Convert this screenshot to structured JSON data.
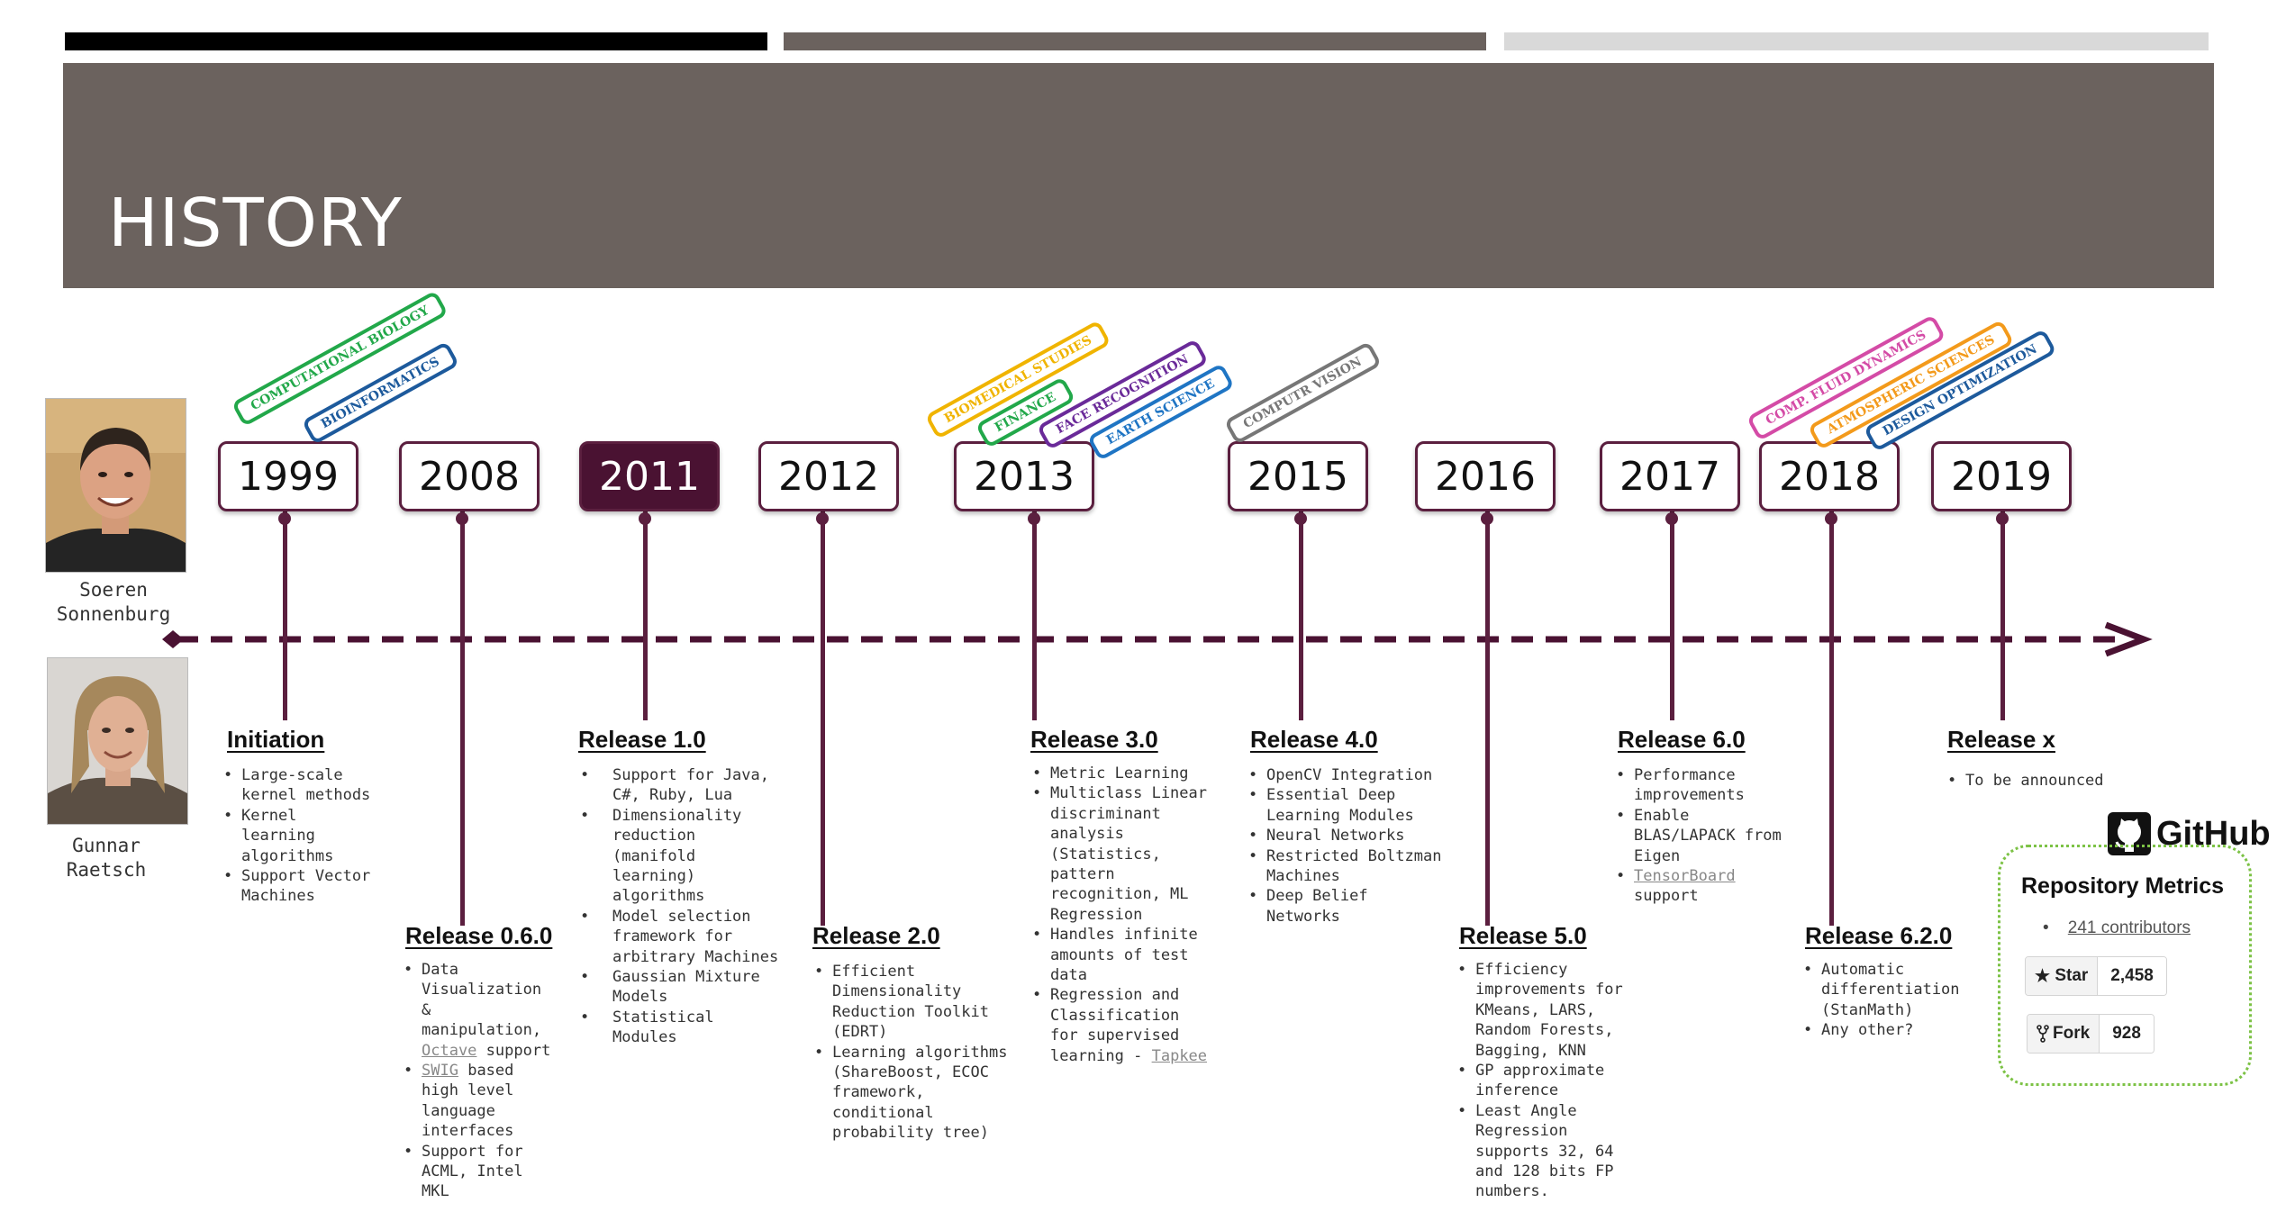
{
  "title": "HISTORY",
  "colors": {
    "accent": "#5b1f3f",
    "header": "#6b625e",
    "card_border": "#7cc245"
  },
  "people": [
    {
      "name_line1": "Soeren",
      "name_line2": "Sonnenburg",
      "icon": "person-photo"
    },
    {
      "name_line1": "Gunnar",
      "name_line2": "Raetsch",
      "icon": "person-photo"
    }
  ],
  "years": [
    "1999",
    "2008",
    "2011",
    "2012",
    "2013",
    "2015",
    "2016",
    "2017",
    "2018",
    "2019"
  ],
  "active_year": "2011",
  "tags": {
    "computational_biology": "COMPUTATIONAL BIOLOGY",
    "bioinformatics": "BIOINFORMATICS",
    "biomedical_studies": "BIOMEDICAL STUDIES",
    "finance": "FINANCE",
    "face_recognition": "FACE RECOGNITION",
    "earth_science": "EARTH SCIENCE",
    "computr_vision": "COMPUTR VISION",
    "comp_fluid_dynamics": "COMP. FLUID DYNAMICS",
    "atmospheric_sciences": "ATMOSPHERIC SCIENCES",
    "design_optimization": "DESIGN OPTIMIZATION"
  },
  "releases": {
    "initiation": {
      "title": "Initiation",
      "items": [
        "Large-scale kernel methods",
        "Kernel learning algorithms",
        "Support Vector Machines"
      ]
    },
    "r060": {
      "title": "Release 0.6.0",
      "i1": "Data Visualization & manipulation,",
      "i1_link": "Octave",
      "i1_tail": "support",
      "i2_link": "SWIG",
      "i2_tail": "based high level language interfaces",
      "i3": "Support for ACML, Intel MKL"
    },
    "r10": {
      "title": "Release 1.0",
      "items": [
        "Support for Java, C#, Ruby, Lua",
        "Dimensionality reduction (manifold learning) algorithms",
        "Model selection framework for arbitrary Machines",
        "Gaussian Mixture Models",
        "Statistical Modules"
      ]
    },
    "r20": {
      "title": "Release 2.0",
      "items": [
        "Efficient Dimensionality Reduction Toolkit (EDRT)",
        "Learning algorithms (ShareBoost, ECOC framework, conditional probability tree)"
      ]
    },
    "r30": {
      "title": "Release 3.0",
      "items": [
        "Metric Learning",
        "Multiclass Linear discriminant analysis (Statistics, pattern recognition, ML Regression",
        "Handles infinite amounts of test data"
      ],
      "last": "Regression and Classification for supervised learning -",
      "last_link": "Tapkee"
    },
    "r40": {
      "title": "Release 4.0",
      "items": [
        "OpenCV Integration",
        "Essential Deep Learning Modules",
        "Neural Networks",
        "Restricted Boltzman Machines",
        "Deep Belief Networks"
      ]
    },
    "r50": {
      "title": "Release 5.0",
      "items": [
        "Efficiency improvements for KMeans, LARS, Random Forests, Bagging, KNN",
        "GP approximate inference",
        "Least Angle Regression supports 32, 64 and 128 bits FP numbers."
      ]
    },
    "r60": {
      "title": "Release 6.0",
      "items": [
        "Performance improvements",
        "Enable BLAS/LAPACK from Eigen"
      ],
      "last_link": "TensorBoard",
      "last_tail": "support"
    },
    "r620": {
      "title": "Release 6.2.0",
      "items": [
        "Automatic differentiation (StanMath)",
        "Any other?"
      ]
    },
    "rx": {
      "title": "Release x",
      "items": [
        "To be announced"
      ]
    }
  },
  "github": {
    "logo_text": "GitHub",
    "card_title": "Repository Metrics",
    "contributors": "241 contributors",
    "star_label": "Star",
    "star_count": "2,458",
    "fork_label": "Fork",
    "fork_count": "928"
  }
}
